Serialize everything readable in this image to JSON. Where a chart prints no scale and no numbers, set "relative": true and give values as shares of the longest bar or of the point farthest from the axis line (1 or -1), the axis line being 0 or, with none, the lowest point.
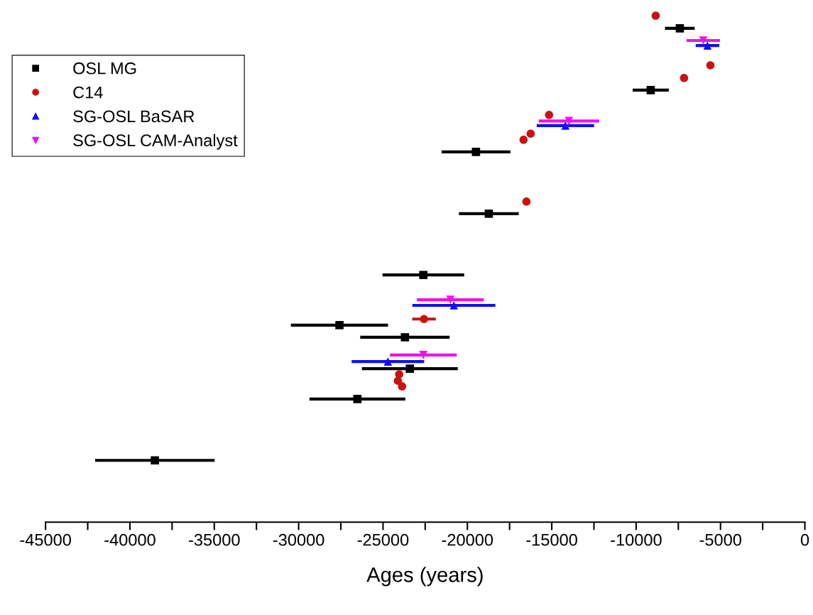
{
  "chart_data": {
    "type": "scatter",
    "xlabel": "Ages (years)",
    "relative": true,
    "tick_labels": "x",
    "grid": false,
    "legend": "top left",
    "xlim": [
      -45000,
      0
    ],
    "xticks": [
      -45000,
      {
        "value": -42500,
        "label": null
      },
      -40000,
      {
        "value": -37500,
        "label": null
      },
      -35000,
      {
        "value": -32500,
        "label": null
      },
      -30000,
      {
        "value": -27500,
        "label": null
      },
      -25000,
      {
        "value": -22500,
        "label": null
      },
      -20000,
      {
        "value": -17500,
        "label": null
      },
      -15000,
      {
        "value": -12500,
        "label": null
      },
      -10000,
      {
        "value": -7500,
        "label": null
      },
      -5000,
      {
        "value": -2500,
        "label": null
      },
      0
    ],
    "series": [
      {
        "name": "OSL MG",
        "color": "#000000",
        "marker": "square",
        "x": [
          -7410,
          -9135,
          -19490,
          -18730,
          -22610,
          -27580,
          -23700,
          -23410,
          -26520,
          -38520
        ],
        "values": [
          0.975,
          0.853,
          0.731,
          0.609,
          0.488,
          0.389,
          0.365,
          0.303,
          0.243,
          0.122
        ],
        "xerrors": [
          880,
          1070,
          2040,
          1770,
          2420,
          2880,
          2650,
          2840,
          2840,
          3540
        ]
      },
      {
        "name": "C14",
        "color": "#cc1111",
        "marker": "circle",
        "x": [
          -8840,
          -5600,
          -7160,
          -15160,
          -16250,
          -16670,
          -16500,
          -22570,
          -24040,
          -24120,
          -23870
        ],
        "values": [
          1.0,
          0.902,
          0.877,
          0.804,
          0.767,
          0.755,
          0.633,
          0.401,
          0.292,
          0.279,
          0.268
        ],
        "xerrors": [
          null,
          null,
          null,
          null,
          null,
          null,
          null,
          700,
          null,
          null,
          null
        ]
      },
      {
        "name": "SG-OSL BaSAR",
        "color": "#1010ee",
        "marker": "triangle",
        "x": [
          -5770,
          -14190,
          -20800,
          -24710
        ],
        "values": [
          0.941,
          0.783,
          0.428,
          0.317
        ],
        "xerrors": [
          700,
          1700,
          2460,
          2150
        ]
      },
      {
        "name": "SG-OSL CAM-Analyst",
        "color": "#ee11ee",
        "marker": "triangle_down",
        "x": [
          -6020,
          -13980,
          -21010,
          -22610
        ],
        "values": [
          0.951,
          0.792,
          0.439,
          0.33
        ],
        "xerrors": [
          990,
          1790,
          1980,
          1980
        ]
      }
    ]
  }
}
